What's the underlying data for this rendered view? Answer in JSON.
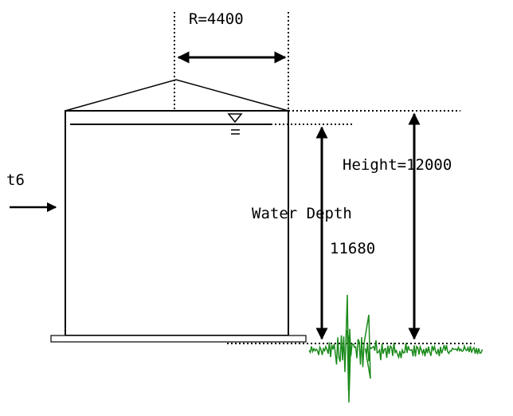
{
  "labels": {
    "radius": "R=4400",
    "thickness": "t6",
    "height": "Height=12000",
    "water_depth": "Water Depth",
    "water_depth_value": "11680"
  }
}
